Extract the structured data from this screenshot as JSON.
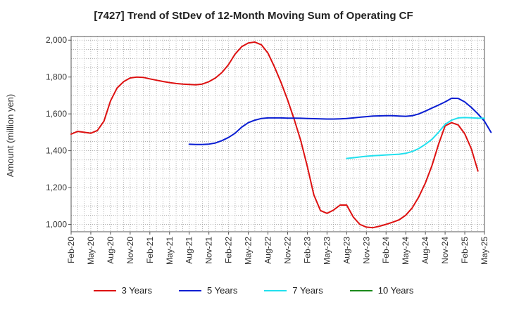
{
  "chart_data": {
    "type": "line",
    "title": "[7427]  Trend of StDev of 12-Month Moving Sum of Operating CF",
    "ylabel": "Amount (million yen)",
    "xlabel": "",
    "ylim": [
      960,
      2020
    ],
    "yticks": [
      1000,
      1200,
      1400,
      1600,
      1800,
      2000
    ],
    "ytick_labels": [
      "1,000",
      "1,200",
      "1,400",
      "1,600",
      "1,800",
      "2,000"
    ],
    "x_start": "Feb-20",
    "x_end": "May-25",
    "xtick_labels": [
      "Feb-20",
      "May-20",
      "Aug-20",
      "Nov-20",
      "Feb-21",
      "May-21",
      "Aug-21",
      "Nov-21",
      "Feb-22",
      "May-22",
      "Aug-22",
      "Nov-22",
      "Feb-23",
      "May-23",
      "Aug-23",
      "Nov-23",
      "Feb-24",
      "May-24",
      "Aug-24",
      "Nov-24",
      "Feb-25",
      "May-25"
    ],
    "grid": true,
    "legend_position": "bottom",
    "series": [
      {
        "name": "3 Years",
        "color": "#dd1111",
        "start": "Feb-20",
        "values": [
          1490,
          1505,
          1500,
          1495,
          1510,
          1560,
          1670,
          1740,
          1775,
          1795,
          1800,
          1798,
          1790,
          1783,
          1776,
          1770,
          1765,
          1762,
          1760,
          1758,
          1762,
          1775,
          1795,
          1825,
          1868,
          1925,
          1965,
          1985,
          1990,
          1975,
          1930,
          1855,
          1770,
          1675,
          1570,
          1455,
          1315,
          1160,
          1075,
          1060,
          1078,
          1105,
          1105,
          1040,
          1000,
          985,
          982,
          990,
          1000,
          1012,
          1025,
          1050,
          1090,
          1150,
          1225,
          1320,
          1435,
          1535,
          1552,
          1540,
          1492,
          1410,
          1290
        ]
      },
      {
        "name": "5 Years",
        "color": "#0a1ed2",
        "start": "Aug-21",
        "values": [
          1435,
          1434,
          1434,
          1436,
          1442,
          1455,
          1472,
          1495,
          1528,
          1552,
          1566,
          1575,
          1578,
          1578,
          1578,
          1577,
          1577,
          1576,
          1575,
          1574,
          1573,
          1572,
          1572,
          1573,
          1575,
          1578,
          1582,
          1585,
          1588,
          1589,
          1590,
          1590,
          1588,
          1587,
          1590,
          1600,
          1615,
          1632,
          1648,
          1665,
          1685,
          1684,
          1665,
          1635,
          1600,
          1560,
          1500
        ]
      },
      {
        "name": "7 Years",
        "color": "#22e0ee",
        "start": "Aug-23",
        "values": [
          1358,
          1362,
          1366,
          1370,
          1373,
          1375,
          1377,
          1379,
          1381,
          1386,
          1396,
          1412,
          1435,
          1462,
          1500,
          1543,
          1566,
          1578,
          1580,
          1579,
          1577,
          1576
        ]
      },
      {
        "name": "10 Years",
        "color": "#1a8a1a",
        "start": "Feb-25",
        "values": []
      }
    ]
  }
}
